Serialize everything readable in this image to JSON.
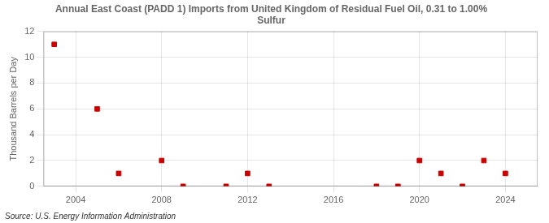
{
  "chart_data": {
    "type": "scatter",
    "title": "Annual East Coast (PADD 1) Imports from United Kingdom of Residual Fuel Oil, 0.31 to 1.00%\nSulfur",
    "ylabel": "Thousand Barrels per Day",
    "source": "Source: U.S. Energy Information Administration",
    "x": [
      2003,
      2005,
      2006,
      2008,
      2009,
      2011,
      2012,
      2013,
      2018,
      2019,
      2020,
      2021,
      2022,
      2023,
      2024
    ],
    "values": [
      11,
      6,
      1,
      2,
      0,
      0,
      1,
      0,
      0,
      0,
      2,
      1,
      0,
      2,
      1
    ],
    "color": "#cc0000",
    "marker": "square",
    "xlim": [
      2002.5,
      2025.5
    ],
    "xticks": [
      2004,
      2008,
      2012,
      2016,
      2020,
      2024
    ],
    "ylim": [
      0,
      12
    ],
    "yticks": [
      0,
      2,
      4,
      6,
      8,
      10,
      12
    ],
    "grid": true
  }
}
